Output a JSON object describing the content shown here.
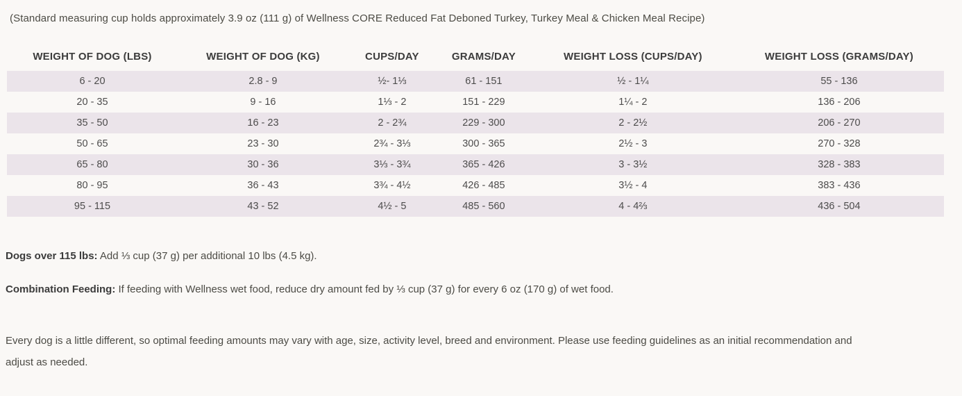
{
  "page": {
    "top_note": "(Standard measuring cup holds approximately 3.9 oz (111 g) of Wellness CORE Reduced Fat Deboned Turkey, Turkey Meal & Chicken Meal Recipe)"
  },
  "feeding_table": {
    "columns": [
      "WEIGHT OF DOG (LBS)",
      "WEIGHT OF DOG (KG)",
      "CUPS/DAY",
      "GRAMS/DAY",
      "WEIGHT LOSS (CUPS/DAY)",
      "WEIGHT LOSS (GRAMS/DAY)"
    ],
    "rows": [
      [
        "6 - 20",
        "2.8 - 9",
        "½- 1⅓",
        "61 - 151",
        "½ - 1¼",
        "55 - 136"
      ],
      [
        "20 - 35",
        "9 - 16",
        "1⅓ - 2",
        "151 - 229",
        "1¼ - 2",
        "136 - 206"
      ],
      [
        "35 - 50",
        "16 - 23",
        "2 - 2¾",
        "229 - 300",
        "2 - 2½",
        "206 - 270"
      ],
      [
        "50 - 65",
        "23 - 30",
        "2¾ - 3⅓",
        "300 - 365",
        "2½ - 3",
        "270 - 328"
      ],
      [
        "65 - 80",
        "30 - 36",
        "3⅓ - 3¾",
        "365 - 426",
        "3 - 3½",
        "328 - 383"
      ],
      [
        "80 - 95",
        "36 - 43",
        "3¾ - 4½",
        "426 - 485",
        "3½ - 4",
        "383 - 436"
      ],
      [
        "95 - 115",
        "43 - 52",
        "4½ - 5",
        "485 - 560",
        "4 - 4⅔",
        "436 - 504"
      ]
    ]
  },
  "notes": {
    "over_115_label": "Dogs over 115 lbs:",
    "over_115_text": " Add ⅓ cup (37 g) per additional 10 lbs (4.5 kg).",
    "combination_label": "Combination Feeding:",
    "combination_text": " If feeding with Wellness wet food, reduce dry amount fed by ⅓ cup (37 g) for every 6 oz (170 g) of wet food.",
    "disclaimer": "Every dog is a little different, so optimal feeding amounts may vary with age, size, activity level, breed and environment. Please use feeding guidelines as an initial recommendation and adjust as needed."
  },
  "colors": {
    "background": "#faf8f6",
    "row_stripe": "#ebe4ea",
    "text": "#4a4a46",
    "heading_text": "#3c3c3c"
  }
}
